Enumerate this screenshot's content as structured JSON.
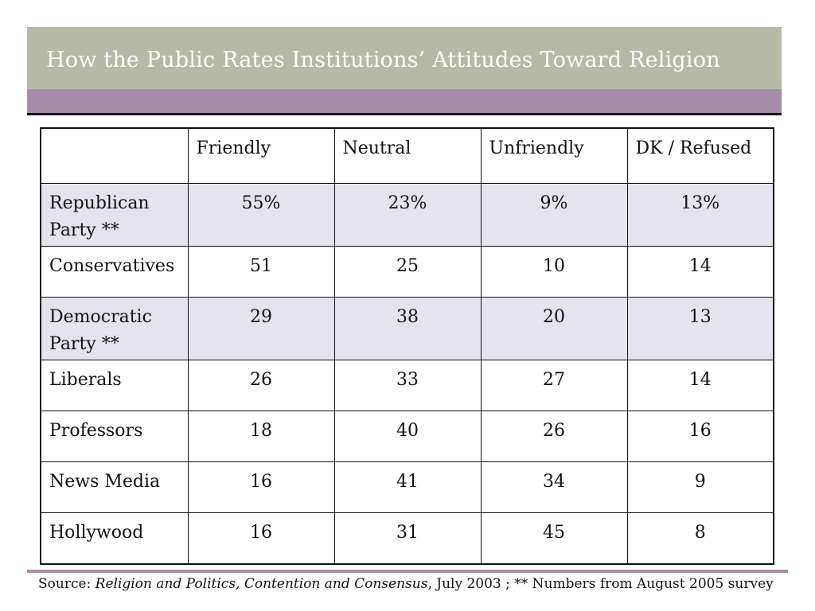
{
  "title": "How the Public Rates Institutions’ Attitudes Toward Religion",
  "colors": {
    "title_bar": "#b7b9a7",
    "band": "#a88ba8",
    "shaded_row": "#e5e4ee"
  },
  "table": {
    "columns": [
      "",
      "Friendly",
      "Neutral",
      "Unfriendly",
      "DK / Refused"
    ],
    "rows": [
      {
        "label_line1": "Republican",
        "label_line2": "Party **",
        "values": [
          "55%",
          "23%",
          "9%",
          "13%"
        ]
      },
      {
        "label": "Conservatives",
        "values": [
          "51",
          "25",
          "10",
          "14"
        ]
      },
      {
        "label_line1": "Democratic",
        "label_line2": "Party **",
        "values": [
          "29",
          "38",
          "20",
          "13"
        ]
      },
      {
        "label": "Liberals",
        "values": [
          "26",
          "33",
          "27",
          "14"
        ]
      },
      {
        "label": "Professors",
        "values": [
          "18",
          "40",
          "26",
          "16"
        ]
      },
      {
        "label": "News Media",
        "values": [
          "16",
          "41",
          "34",
          "9"
        ]
      },
      {
        "label": "Hollywood",
        "values": [
          "16",
          "31",
          "45",
          "8"
        ]
      }
    ]
  },
  "source": {
    "prefix": "Source: ",
    "work": "Religion and Politics, Contention and Consensus",
    "suffix": ", July 2003 ;  ** Numbers from August 2005 survey"
  }
}
